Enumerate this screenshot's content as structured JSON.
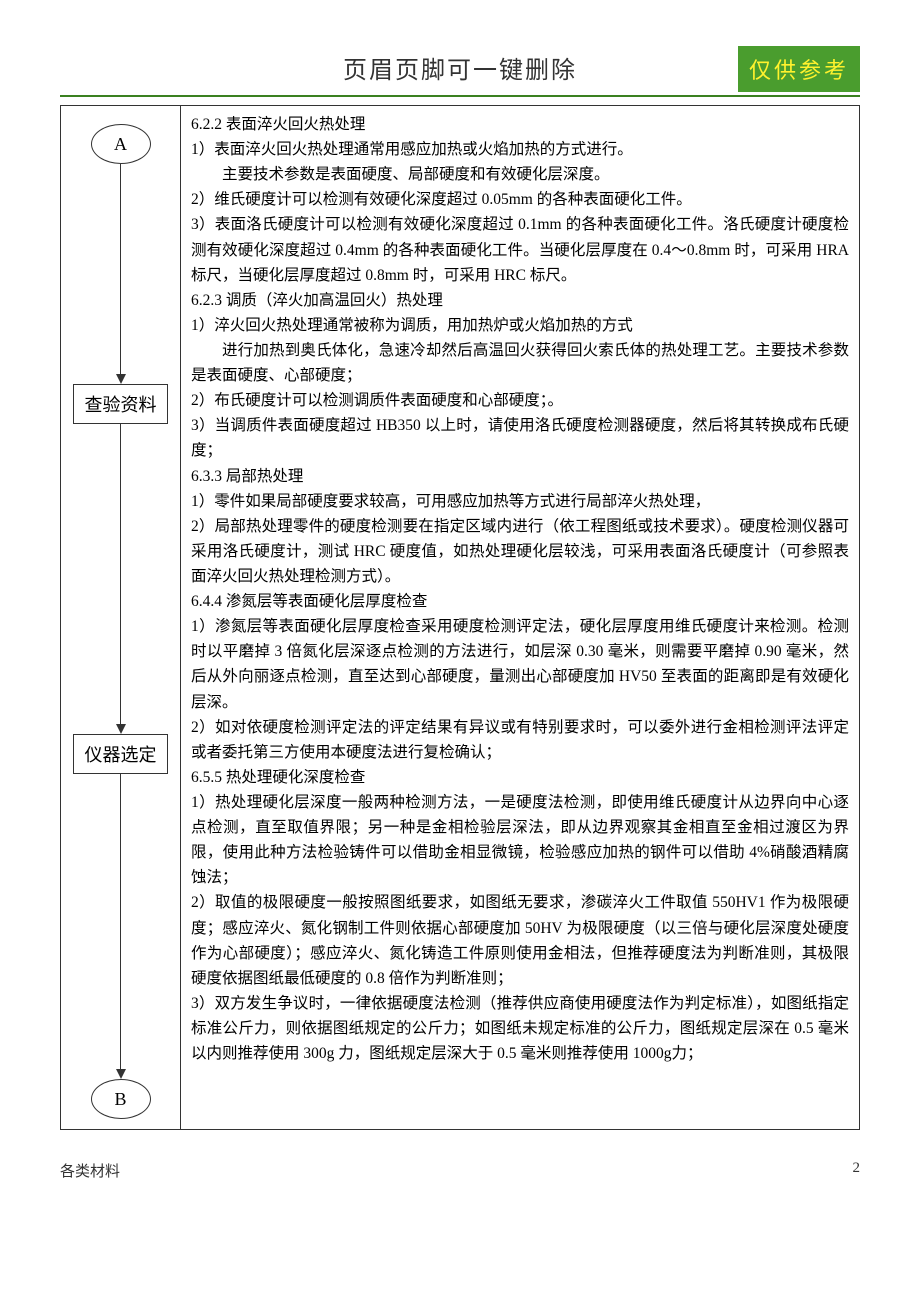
{
  "header": {
    "title": "页眉页脚可一键删除",
    "stamp": "仅供参考"
  },
  "flowchart": {
    "nodeA": "A",
    "nodeCheck": "查验资料",
    "nodeSelect": "仪器选定",
    "nodeB": "B",
    "arrow1_height": 210,
    "arrow2_height": 300,
    "arrow3_height": 295
  },
  "content": {
    "sections": [
      {
        "h": "6.2.2 表面淬火回火热处理"
      },
      {
        "p": "1）表面淬火回火热处理通常用感应加热或火焰加热的方式进行。"
      },
      {
        "pi": "主要技术参数是表面硬度、局部硬度和有效硬化层深度。"
      },
      {
        "p": "2）维氏硬度计可以检测有效硬化深度超过 0.05mm 的各种表面硬化工件。"
      },
      {
        "p": "3）表面洛氏硬度计可以检测有效硬化深度超过 0.1mm 的各种表面硬化工件。洛氏硬度计硬度检测有效硬化深度超过 0.4mm 的各种表面硬化工件。当硬化层厚度在 0.4～0.8mm 时，可采用 HRA 标尺，当硬化层厚度超过 0.8mm 时，可采用 HRC 标尺。"
      },
      {
        "h": "6.2.3 调质（淬火加高温回火）热处理"
      },
      {
        "p": "1）淬火回火热处理通常被称为调质，用加热炉或火焰加热的方式"
      },
      {
        "pi": "进行加热到奥氏体化，急速冷却然后高温回火获得回火索氏体的热处理工艺。主要技术参数是表面硬度、心部硬度；"
      },
      {
        "p": "2）布氏硬度计可以检测调质件表面硬度和心部硬度；。"
      },
      {
        "p": "3）当调质件表面硬度超过 HB350 以上时，请使用洛氏硬度检测器硬度，然后将其转换成布氏硬度；"
      },
      {
        "h": "6.3.3 局部热处理"
      },
      {
        "p": "1）零件如果局部硬度要求较高，可用感应加热等方式进行局部淬火热处理，"
      },
      {
        "p": "2）局部热处理零件的硬度检测要在指定区域内进行（依工程图纸或技术要求）。硬度检测仪器可采用洛氏硬度计，测试 HRC 硬度值，如热处理硬化层较浅，可采用表面洛氏硬度计（可参照表面淬火回火热处理检测方式）。"
      },
      {
        "h": "6.4.4 渗氮层等表面硬化层厚度检查"
      },
      {
        "p": "1）渗氮层等表面硬化层厚度检查采用硬度检测评定法，硬化层厚度用维氏硬度计来检测。检测时以平磨掉 3 倍氮化层深逐点检测的方法进行，如层深 0.30 毫米，则需要平磨掉 0.90 毫米，然后从外向丽逐点检测，直至达到心部硬度，量测出心部硬度加 HV50 至表面的距离即是有效硬化层深。"
      },
      {
        "p": "2）如对依硬度检测评定法的评定结果有异议或有特别要求时，可以委外进行金相检测评法评定或者委托第三方使用本硬度法进行复检确认；"
      },
      {
        "h": "6.5.5 热处理硬化深度检查"
      },
      {
        "p": "1）热处理硬化层深度一般两种检测方法，一是硬度法检测，即使用维氏硬度计从边界向中心逐点检测，直至取值界限；另一种是金相检验层深法，即从边界观察其金相直至金相过渡区为界限，使用此种方法检验铸件可以借助金相显微镜，检验感应加热的钢件可以借助 4%硝酸酒精腐蚀法；"
      },
      {
        "p": "2）取值的极限硬度一般按照图纸要求，如图纸无要求，渗碳淬火工件取值 550HV1 作为极限硬度；感应淬火、氮化钢制工件则依据心部硬度加 50HV 为极限硬度（以三倍与硬化层深度处硬度作为心部硬度）；感应淬火、氮化铸造工件原则使用金相法，但推荐硬度法为判断准则，其极限硬度依据图纸最低硬度的 0.8 倍作为判断准则；"
      },
      {
        "p": "3）双方发生争议时，一律依据硬度法检测（推荐供应商使用硬度法作为判定标准），如图纸指定标准公斤力，则依据图纸规定的公斤力；如图纸未规定标准的公斤力，图纸规定层深在 0.5 毫米以内则推荐使用 300g 力，图纸规定层深大于 0.5 毫米则推荐使用 1000g力；"
      }
    ]
  },
  "footer": {
    "left": "各类材料",
    "pageNum": "2"
  }
}
